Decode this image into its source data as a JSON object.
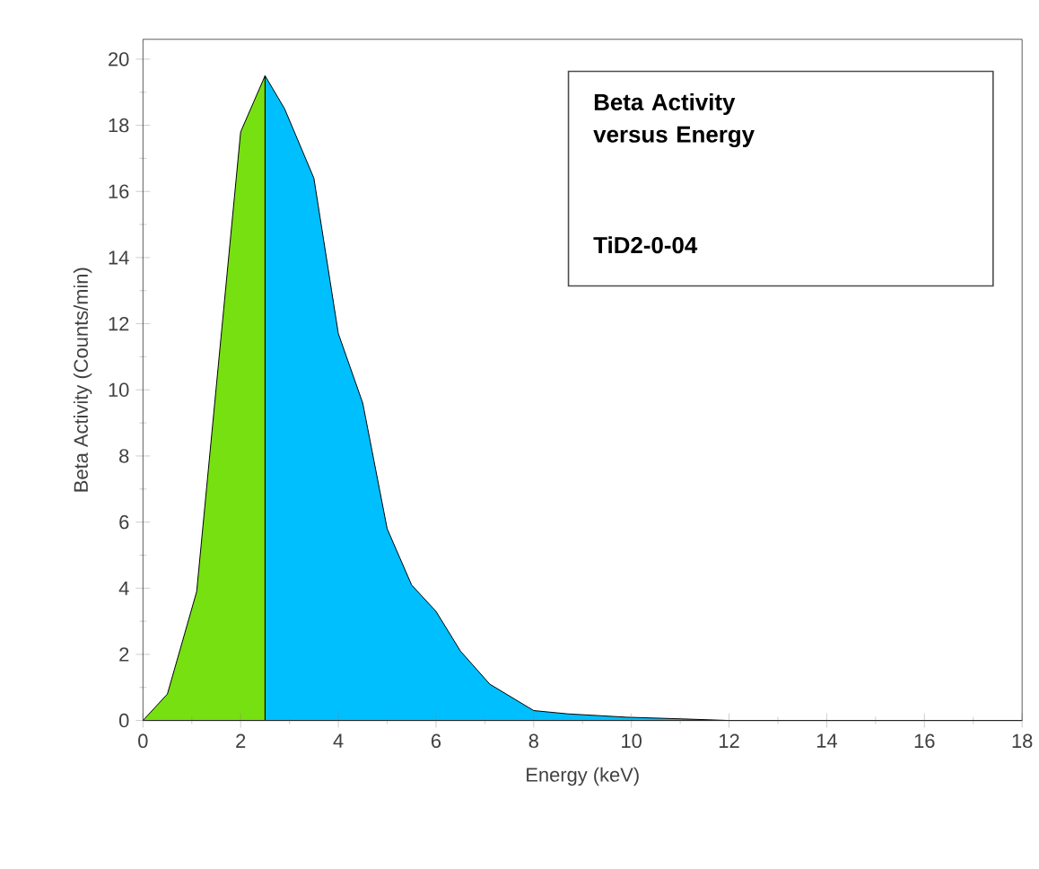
{
  "chart_data": {
    "type": "area",
    "title": "Beta Activity versus Energy",
    "xlabel": "Energy (keV)",
    "ylabel": "Beta Activity (Counts/min)",
    "annotations": [
      "TiD2-0-04"
    ],
    "series": [
      {
        "color": "#77e011",
        "x": [
          0,
          0.5,
          1.1,
          2.0,
          2.5
        ],
        "values": [
          0,
          0.8,
          3.9,
          17.8,
          19.5
        ]
      },
      {
        "color": "#00bfff",
        "x": [
          2.5,
          2.9,
          3.5,
          4.0,
          4.5,
          5.0,
          5.5,
          6.0,
          6.5,
          7.1,
          8.0,
          8.7,
          9.9,
          11.0,
          12.0,
          18.0
        ],
        "values": [
          19.5,
          18.5,
          16.4,
          11.7,
          9.6,
          5.8,
          4.1,
          3.3,
          2.1,
          1.1,
          0.3,
          0.2,
          0.1,
          0.05,
          0,
          0
        ]
      }
    ],
    "xlim": [
      0,
      18
    ],
    "ylim": [
      0,
      20.6
    ],
    "xticks": [
      0,
      2,
      4,
      6,
      8,
      10,
      12,
      14,
      16,
      18
    ],
    "yticks": [
      0,
      2,
      4,
      6,
      8,
      10,
      12,
      14,
      16,
      18,
      20
    ],
    "grid": false
  }
}
